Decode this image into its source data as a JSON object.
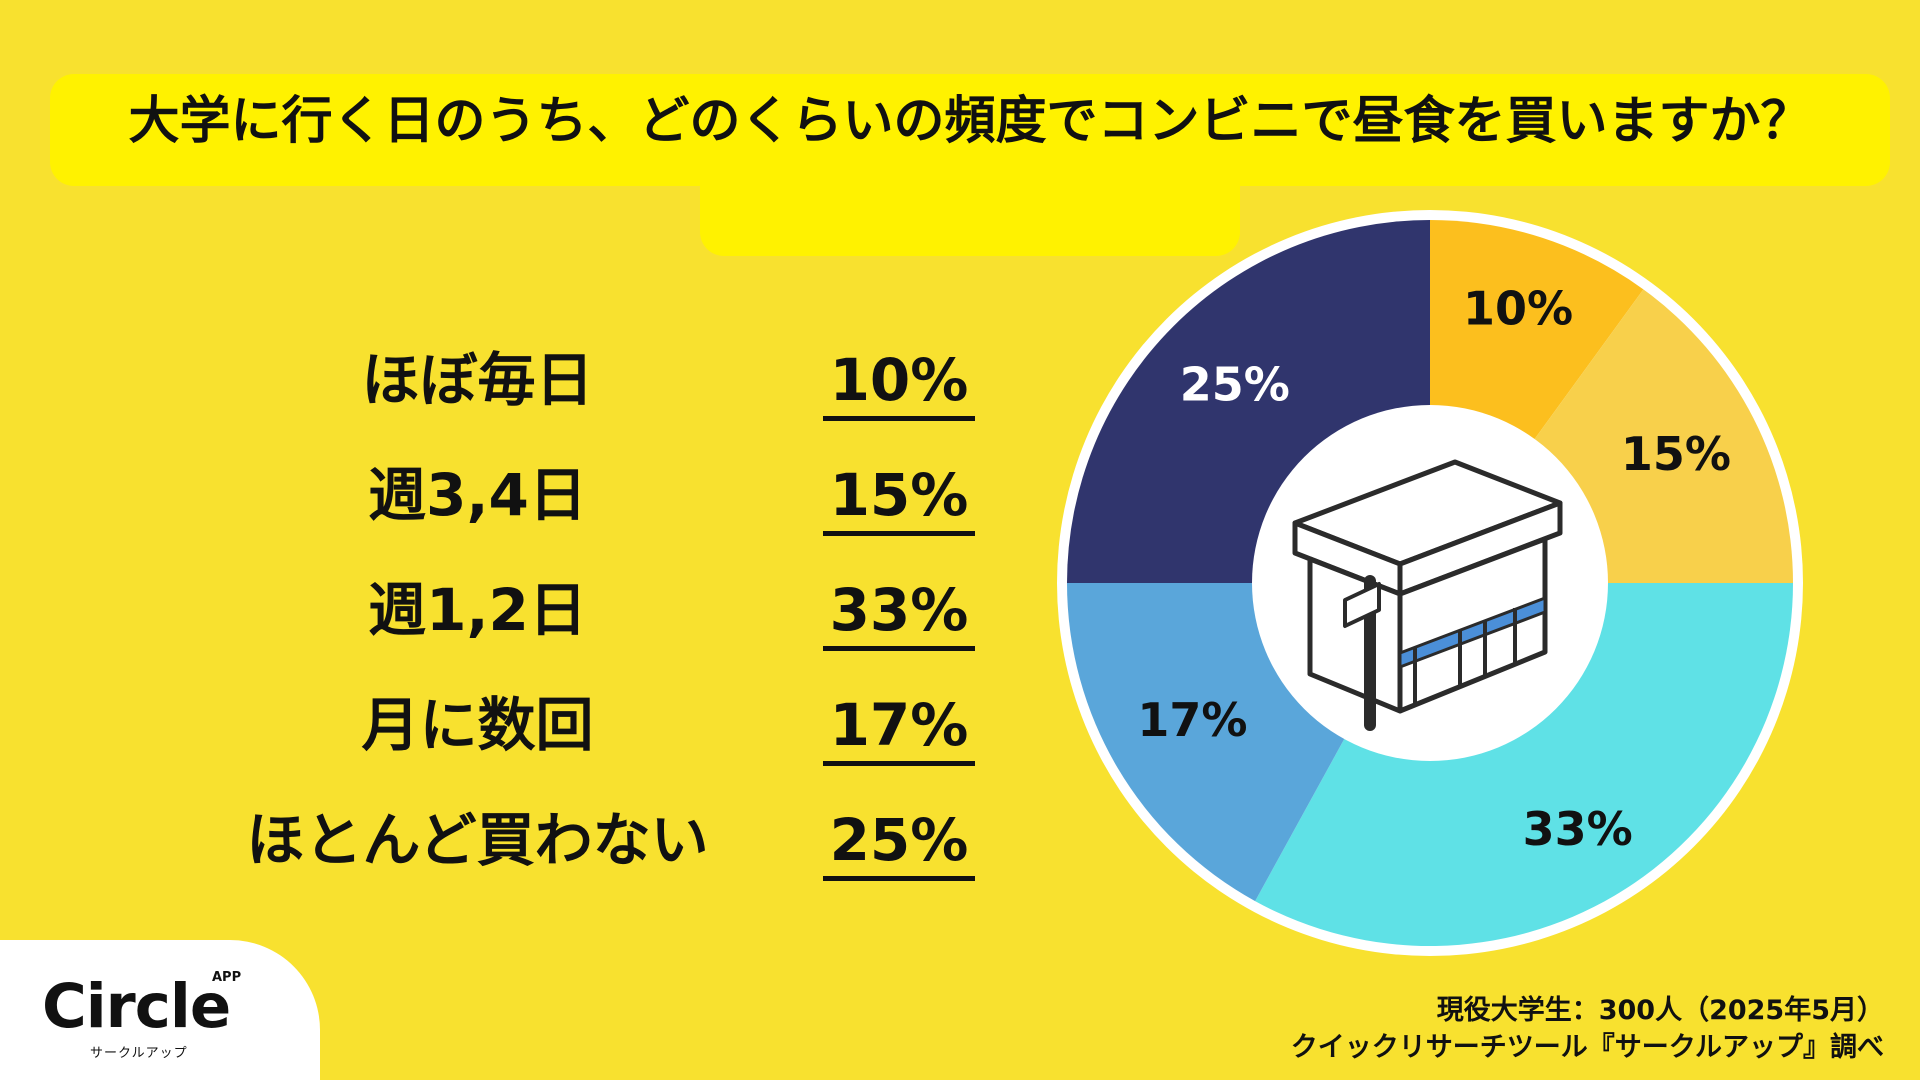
{
  "title": "大学に行く日のうち、どのくらいの頻度でコンビニで昼食を買いますか？",
  "rows": [
    {
      "label": "ほぼ毎日",
      "value": "10%"
    },
    {
      "label": "週3,4日",
      "value": "15%"
    },
    {
      "label": "週1,2日",
      "value": "33%"
    },
    {
      "label": "月に数回",
      "value": "17%"
    },
    {
      "label": "ほとんど買わない",
      "value": "25%"
    }
  ],
  "chart_data": {
    "type": "pie",
    "title": "大学に行く日のうち、どのくらいの頻度でコンビニで昼食を買いますか？",
    "categories": [
      "ほぼ毎日",
      "週3,4日",
      "週1,2日",
      "月に数回",
      "ほとんど買わない"
    ],
    "values": [
      10,
      15,
      33,
      17,
      25
    ],
    "labels": [
      "10%",
      "15%",
      "33%",
      "17%",
      "25%"
    ],
    "colors": [
      "#fcbf1e",
      "#f8d04b",
      "#5fe1e6",
      "#5aa6da",
      "#30356d"
    ],
    "label_colors": [
      "#111111",
      "#111111",
      "#111111",
      "#111111",
      "#ffffff"
    ],
    "donut": true,
    "center_icon": "convenience-store-icon",
    "legend": "none"
  },
  "footnote": {
    "line1": "現役大学生：300人（2025年5月）",
    "line2": "クイックリサーチツール『サークルアップ』調べ"
  },
  "logo": {
    "main": "Circle",
    "app": "APP",
    "sub": "サークルアップ"
  }
}
